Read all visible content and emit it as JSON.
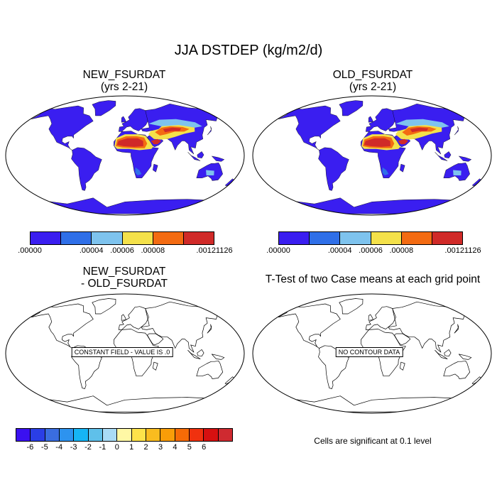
{
  "figure": {
    "title": "JJA DSTDEP (kg/m2/d)"
  },
  "panels": {
    "top_left": {
      "title_line1": "NEW_FSURDAT",
      "title_line2": "(yrs 2-21)"
    },
    "top_right": {
      "title_line1": "OLD_FSURDAT",
      "title_line2": "(yrs 2-21)"
    },
    "bottom_left": {
      "title_line1": "NEW_FSURDAT",
      "title_line2": "- OLD_FSURDAT",
      "overlay_label": "CONSTANT FIELD - VALUE IS .0"
    },
    "bottom_right": {
      "title": "T-Test of two Case means at each grid point",
      "overlay_label": "NO CONTOUR DATA",
      "footnote": "Cells are significant at 0.1 level"
    }
  },
  "colorbar_abs": {
    "colors": [
      "#3a1ef0",
      "#2f6fe8",
      "#7ec3ee",
      "#f4e14a",
      "#f36b12",
      "#d02a28"
    ],
    "labels": [
      ".00000",
      ".00004",
      ".00006",
      ".00008",
      ".00121126"
    ],
    "label_boundaries": [
      0,
      2,
      3,
      4,
      6
    ]
  },
  "colorbar_diff": {
    "colors": [
      "#3a10f0",
      "#2a3ee6",
      "#3a6de0",
      "#2d93ef",
      "#16b5f5",
      "#5fc0ea",
      "#a9dbf6",
      "#fff8a5",
      "#fde34a",
      "#f9bc1f",
      "#f99d08",
      "#f66b06",
      "#f0310f",
      "#d61010",
      "#cf2a30"
    ],
    "labels": [
      "-6",
      "-5",
      "-4",
      "-3",
      "-2",
      "-1",
      "0",
      "1",
      "2",
      "3",
      "4",
      "5",
      "6"
    ],
    "label_boundaries": [
      1,
      2,
      3,
      4,
      5,
      6,
      7,
      8,
      9,
      10,
      11,
      12,
      13
    ]
  },
  "map_style": {
    "ocean": "#ffffff",
    "land_fill": "#3a1ef0",
    "coast": "#000000"
  }
}
